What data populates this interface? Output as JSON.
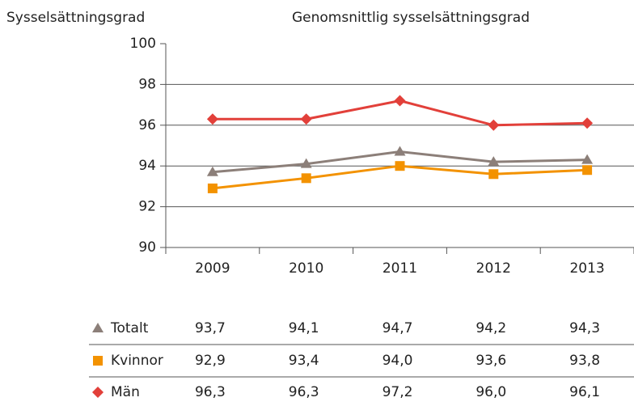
{
  "chart_data": {
    "type": "line",
    "title": "Genomsnittlig sysselsättningsgrad",
    "y_label": "Sysselsättningsgrad",
    "categories": [
      "2009",
      "2010",
      "2011",
      "2012",
      "2013"
    ],
    "ylim": [
      90,
      100
    ],
    "yticks": [
      90,
      92,
      94,
      96,
      98,
      100
    ],
    "grid": true,
    "series": [
      {
        "name": "Totalt",
        "color": "#8c7f79",
        "marker": "triangle",
        "values": [
          93.7,
          94.1,
          94.7,
          94.2,
          94.3
        ],
        "value_labels": [
          "93,7",
          "94,1",
          "94,7",
          "94,2",
          "94,3"
        ]
      },
      {
        "name": "Kvinnor",
        "color": "#f39200",
        "marker": "square",
        "values": [
          92.9,
          93.4,
          94.0,
          93.6,
          93.8
        ],
        "value_labels": [
          "92,9",
          "93,4",
          "94,0",
          "93,6",
          "93,8"
        ]
      },
      {
        "name": "Män",
        "color": "#e2403a",
        "marker": "diamond",
        "values": [
          96.3,
          96.3,
          97.2,
          96.0,
          96.1
        ],
        "value_labels": [
          "96,3",
          "96,3",
          "97,2",
          "96,0",
          "96,1"
        ]
      }
    ]
  }
}
